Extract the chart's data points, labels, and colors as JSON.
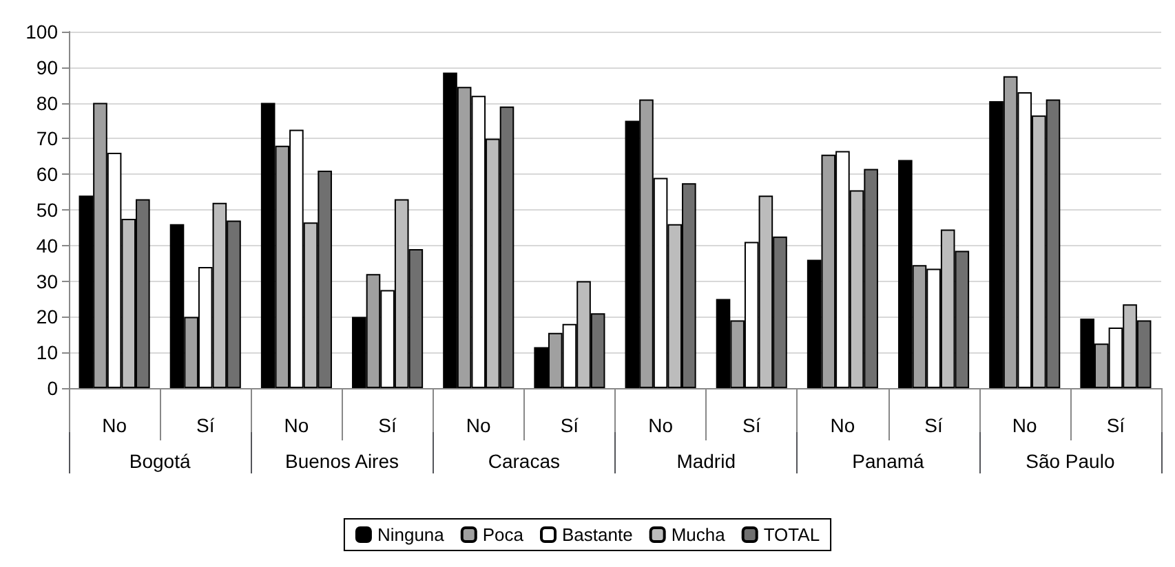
{
  "chart_data": {
    "type": "bar",
    "categories": [
      "No",
      "Sí",
      "No",
      "Sí",
      "No",
      "Sí",
      "No",
      "Sí",
      "No",
      "Sí",
      "No",
      "Sí"
    ],
    "annotations": [
      "Bogotá",
      "Buenos Aires",
      "Caracas",
      "Madrid",
      "Panamá",
      "São Paulo"
    ],
    "series": [
      {
        "name": "Ninguna",
        "color": "#000000",
        "values": [
          54,
          46,
          80,
          20,
          88.5,
          11.5,
          75,
          25,
          36,
          64,
          80.5,
          19.5
        ]
      },
      {
        "name": "Poca",
        "color": "#a0a0a0",
        "values": [
          80,
          20,
          68,
          32,
          84.5,
          15.5,
          81,
          19,
          65.5,
          34.5,
          87.5,
          12.5
        ]
      },
      {
        "name": "Bastante",
        "color": "#ffffff",
        "values": [
          66,
          34,
          72.5,
          27.5,
          82,
          18,
          59,
          41,
          66.5,
          33.5,
          83,
          17
        ]
      },
      {
        "name": "Mucha",
        "color": "#bcbcbc",
        "values": [
          47.5,
          52,
          46.5,
          53,
          70,
          30,
          46,
          54,
          55.5,
          44.5,
          76.5,
          23.5
        ]
      },
      {
        "name": "TOTAL",
        "color": "#707070",
        "values": [
          53,
          47,
          61,
          39,
          79,
          21,
          57.5,
          42.5,
          61.5,
          38.5,
          81,
          19
        ]
      }
    ],
    "ylim": [
      0,
      100
    ],
    "yticks": [
      0,
      10,
      20,
      30,
      40,
      50,
      60,
      70,
      80,
      90,
      100
    ],
    "grid": "y",
    "legend": "bottom"
  }
}
